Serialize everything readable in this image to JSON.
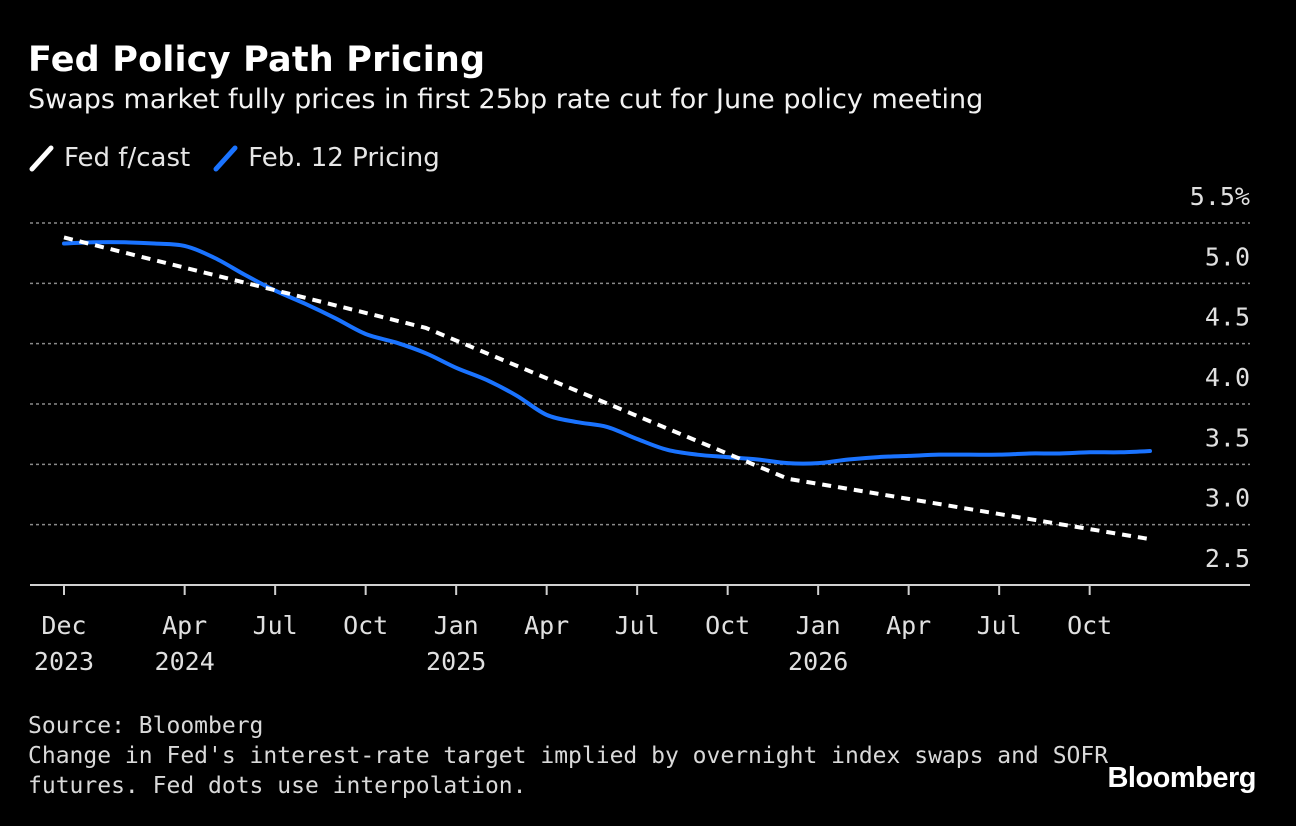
{
  "header": {
    "title": "Fed Policy Path Pricing",
    "subtitle": "Swaps market fully prices in first 25bp rate cut for June policy meeting"
  },
  "legend": [
    {
      "label": "Fed f/cast",
      "color": "#ffffff",
      "style": "dashed"
    },
    {
      "label": "Feb. 12 Pricing",
      "color": "#1a73ff",
      "style": "solid"
    }
  ],
  "footer": {
    "source": "Source: Bloomberg",
    "note_line1": "Change in Fed's interest-rate target implied by overnight index swaps and SOFR",
    "note_line2": "futures. Fed dots use interpolation."
  },
  "logo": "Bloomberg",
  "colors": {
    "background": "#000000",
    "fed_forecast": "#ffffff",
    "pricing": "#1a73ff",
    "grid": "#8a8a8a"
  },
  "chart_data": {
    "type": "line",
    "title": "Fed Policy Path Pricing",
    "ylim": [
      2.5,
      5.5
    ],
    "y_ticks": [
      "5.5%",
      "5.0",
      "4.5",
      "4.0",
      "3.5",
      "3.0",
      "2.5"
    ],
    "y_tick_values": [
      5.5,
      5.0,
      4.5,
      4.0,
      3.5,
      3.0,
      2.5
    ],
    "x_range": [
      "2023-12",
      "2026-12"
    ],
    "x_ticks": [
      {
        "date": "2023-12",
        "line1": "Dec",
        "line2": "2023"
      },
      {
        "date": "2024-04",
        "line1": "Apr",
        "line2": "2024"
      },
      {
        "date": "2024-07",
        "line1": "Jul",
        "line2": ""
      },
      {
        "date": "2024-10",
        "line1": "Oct",
        "line2": ""
      },
      {
        "date": "2025-01",
        "line1": "Jan",
        "line2": "2025"
      },
      {
        "date": "2025-04",
        "line1": "Apr",
        "line2": ""
      },
      {
        "date": "2025-07",
        "line1": "Jul",
        "line2": ""
      },
      {
        "date": "2025-10",
        "line1": "Oct",
        "line2": ""
      },
      {
        "date": "2026-01",
        "line1": "Jan",
        "line2": "2026"
      },
      {
        "date": "2026-04",
        "line1": "Apr",
        "line2": ""
      },
      {
        "date": "2026-07",
        "line1": "Jul",
        "line2": ""
      },
      {
        "date": "2026-10",
        "line1": "Oct",
        "line2": ""
      }
    ],
    "grid": true,
    "legend_position": "top-left",
    "series": [
      {
        "name": "Fed f/cast",
        "style": "dashed",
        "points": [
          [
            "2023-12",
            5.38
          ],
          [
            "2024-12",
            4.63
          ],
          [
            "2025-12",
            3.38
          ],
          [
            "2026-12",
            2.88
          ]
        ]
      },
      {
        "name": "Feb. 12 Pricing",
        "style": "solid",
        "points": [
          [
            "2023-12",
            5.33
          ],
          [
            "2024-01",
            5.34
          ],
          [
            "2024-02",
            5.34
          ],
          [
            "2024-03",
            5.33
          ],
          [
            "2024-04",
            5.31
          ],
          [
            "2024-05",
            5.21
          ],
          [
            "2024-06",
            5.07
          ],
          [
            "2024-07",
            4.94
          ],
          [
            "2024-08",
            4.83
          ],
          [
            "2024-09",
            4.71
          ],
          [
            "2024-10",
            4.58
          ],
          [
            "2024-11",
            4.51
          ],
          [
            "2024-12",
            4.42
          ],
          [
            "2025-01",
            4.3
          ],
          [
            "2025-02",
            4.2
          ],
          [
            "2025-03",
            4.07
          ],
          [
            "2025-04",
            3.91
          ],
          [
            "2025-05",
            3.85
          ],
          [
            "2025-06",
            3.81
          ],
          [
            "2025-07",
            3.71
          ],
          [
            "2025-08",
            3.62
          ],
          [
            "2025-09",
            3.58
          ],
          [
            "2025-10",
            3.56
          ],
          [
            "2025-11",
            3.54
          ],
          [
            "2025-12",
            3.51
          ],
          [
            "2026-01",
            3.51
          ],
          [
            "2026-02",
            3.54
          ],
          [
            "2026-03",
            3.56
          ],
          [
            "2026-04",
            3.57
          ],
          [
            "2026-05",
            3.58
          ],
          [
            "2026-06",
            3.58
          ],
          [
            "2026-07",
            3.58
          ],
          [
            "2026-08",
            3.59
          ],
          [
            "2026-09",
            3.59
          ],
          [
            "2026-10",
            3.6
          ],
          [
            "2026-11",
            3.6
          ],
          [
            "2026-12",
            3.61
          ]
        ]
      }
    ]
  }
}
